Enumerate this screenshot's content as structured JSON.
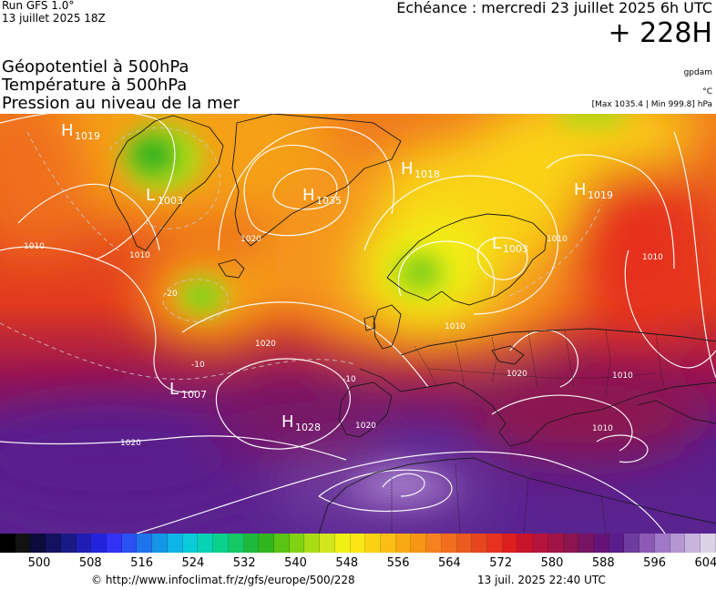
{
  "header": {
    "run_label": "Run GFS 1.0°",
    "run_date": "13 juillet 2025 18Z",
    "echeance": "Echéance : mercredi 23 juillet 2025 6h UTC",
    "lead_time": "+ 228H"
  },
  "parameters": [
    "Géopotentiel à 500hPa",
    "Température à 500hPa",
    "Pression au niveau de la mer"
  ],
  "units": {
    "geopotential": "gpdam",
    "temperature": "°C",
    "pressure_range": "[Max 1035.4 | Min 999.8] hPa"
  },
  "map": {
    "pressure_centers": [
      {
        "type": "H",
        "value": "1019"
      },
      {
        "type": "L",
        "value": "1003"
      },
      {
        "type": "H",
        "value": "1035"
      },
      {
        "type": "H",
        "value": "1018"
      },
      {
        "type": "H",
        "value": "1019"
      },
      {
        "type": "L",
        "value": "1003"
      },
      {
        "type": "L",
        "value": "1007"
      },
      {
        "type": "H",
        "value": "1028"
      }
    ],
    "isobar_labels": [
      "1010",
      "1010",
      "1020",
      "1020",
      "1010",
      "1020",
      "1020",
      "1020",
      "1010",
      "1010",
      "1010",
      "1010"
    ],
    "isotherm_labels": [
      "-20",
      "-10",
      "-10"
    ]
  },
  "colorbar": {
    "colors": [
      "#000000",
      "#121212",
      "#0b0b3c",
      "#12125f",
      "#1a1a86",
      "#1e1eb4",
      "#2323dc",
      "#3232f5",
      "#2a52f0",
      "#1e74eb",
      "#1496e6",
      "#0db4e6",
      "#0acbd8",
      "#08d2b4",
      "#0ad28c",
      "#14c864",
      "#1eb93c",
      "#32b41e",
      "#5ac314",
      "#82d214",
      "#aadc14",
      "#d2e61e",
      "#f0f014",
      "#fae614",
      "#fad214",
      "#fabe14",
      "#f8aa12",
      "#f59614",
      "#f5821e",
      "#f06e1e",
      "#eb5a1e",
      "#e6461e",
      "#e6321e",
      "#dc1e1e",
      "#c8142d",
      "#b4143c",
      "#a01446",
      "#8c1450",
      "#781464",
      "#641478",
      "#5a1e8c",
      "#6e3ca0",
      "#8c5ab4",
      "#a078c8",
      "#b496d2",
      "#c8b4dc",
      "#dcd2e6"
    ],
    "tick_values": [
      "500",
      "508",
      "516",
      "524",
      "532",
      "540",
      "548",
      "556",
      "564",
      "572",
      "580",
      "588",
      "596",
      "604"
    ]
  },
  "footer": {
    "url": "© http://www.infoclimat.fr/z/gfs/europe/500/228",
    "timestamp": "13 juil. 2025 22:40 UTC"
  }
}
